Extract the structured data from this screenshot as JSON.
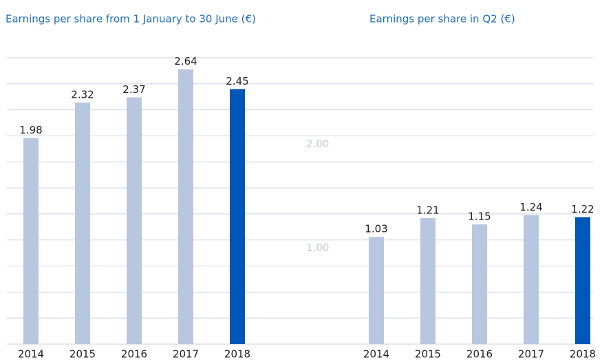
{
  "chart_data": [
    {
      "type": "bar",
      "title": "Earnings per share from 1 January to 30 June (€)",
      "categories": [
        "2014",
        "2015",
        "2016",
        "2017",
        "2018"
      ],
      "values": [
        1.98,
        2.32,
        2.37,
        2.64,
        2.45
      ],
      "colors": [
        "#b8c6e0",
        "#b8c6e0",
        "#b8c6e0",
        "#b8c6e0",
        "#0057b8"
      ],
      "ylim": [
        0,
        2.75
      ],
      "yticks": [
        0,
        0.25,
        0.5,
        0.75,
        1,
        1.25,
        1.5,
        1.75,
        2,
        2.25,
        2.5,
        2.75
      ],
      "grid": true
    },
    {
      "type": "bar",
      "title": "Earnings per share in Q2 (€)",
      "categories": [
        "2014",
        "2015",
        "2016",
        "2017",
        "2018"
      ],
      "values": [
        1.03,
        1.21,
        1.15,
        1.24,
        1.22
      ],
      "colors": [
        "#b8c6e0",
        "#b8c6e0",
        "#b8c6e0",
        "#b8c6e0",
        "#0057b8"
      ],
      "ylim": [
        0,
        2.75
      ],
      "yticks": [
        {
          "value": 1,
          "label": "1.00"
        },
        {
          "value": 2,
          "label": "2.00"
        }
      ],
      "grid": false
    }
  ]
}
